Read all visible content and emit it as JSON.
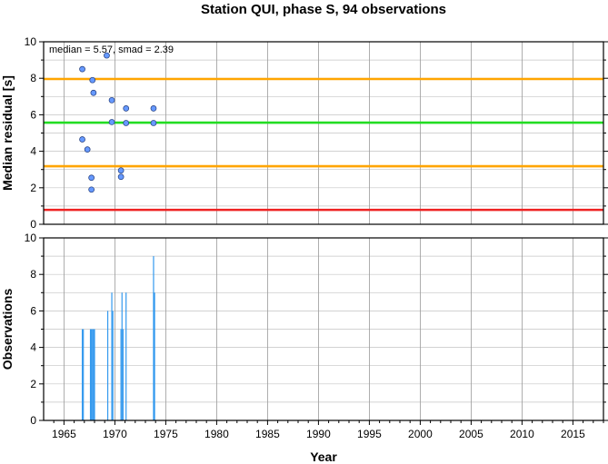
{
  "title": "Station QUI, phase S, 94 observations",
  "chart_data": [
    {
      "type": "scatter",
      "ylabel": "Median residual [s]",
      "annotation": "median = 5.57, smad = 2.39",
      "xlim": [
        1963,
        2018
      ],
      "ylim": [
        0,
        10
      ],
      "yticks": [
        "0",
        "2",
        "4",
        "6",
        "8",
        "10"
      ],
      "grid": true,
      "hlines": [
        {
          "y": 5.57,
          "color": "#22dd22"
        },
        {
          "y": 7.96,
          "color": "#ffa500"
        },
        {
          "y": 3.18,
          "color": "#ffa500"
        },
        {
          "y": 0.79,
          "color": "#ee2222"
        }
      ],
      "marker_color": "#6699ff",
      "points": [
        {
          "x": 1966.8,
          "y": 8.5
        },
        {
          "x": 1967.8,
          "y": 7.9
        },
        {
          "x": 1967.9,
          "y": 7.2
        },
        {
          "x": 1969.2,
          "y": 9.25
        },
        {
          "x": 1969.7,
          "y": 6.8
        },
        {
          "x": 1969.7,
          "y": 5.6
        },
        {
          "x": 1971.1,
          "y": 6.35
        },
        {
          "x": 1971.1,
          "y": 5.55
        },
        {
          "x": 1973.8,
          "y": 6.35
        },
        {
          "x": 1973.8,
          "y": 5.55
        },
        {
          "x": 1966.8,
          "y": 4.65
        },
        {
          "x": 1967.3,
          "y": 4.1
        },
        {
          "x": 1970.6,
          "y": 2.95
        },
        {
          "x": 1970.6,
          "y": 2.6
        },
        {
          "x": 1967.7,
          "y": 2.55
        },
        {
          "x": 1967.7,
          "y": 1.9
        }
      ]
    },
    {
      "type": "bar",
      "ylabel": "Observations",
      "xlabel": "Year",
      "xlim": [
        1963,
        2018
      ],
      "ylim": [
        0,
        10
      ],
      "yticks": [
        "0",
        "2",
        "4",
        "6",
        "8",
        "10"
      ],
      "xticks": [
        "1965",
        "1970",
        "1975",
        "1980",
        "1985",
        "1990",
        "1995",
        "2000",
        "2005",
        "2010",
        "2015"
      ],
      "grid": true,
      "bar_color": "#3399ee",
      "bars": [
        {
          "x": 1966.8,
          "y": 5
        },
        {
          "x": 1966.9,
          "y": 5
        },
        {
          "x": 1967.6,
          "y": 5
        },
        {
          "x": 1967.7,
          "y": 5
        },
        {
          "x": 1967.8,
          "y": 5
        },
        {
          "x": 1967.9,
          "y": 5
        },
        {
          "x": 1968.0,
          "y": 5
        },
        {
          "x": 1969.3,
          "y": 6
        },
        {
          "x": 1969.7,
          "y": 7
        },
        {
          "x": 1969.8,
          "y": 6
        },
        {
          "x": 1970.6,
          "y": 5
        },
        {
          "x": 1970.7,
          "y": 7
        },
        {
          "x": 1970.8,
          "y": 5
        },
        {
          "x": 1971.1,
          "y": 7
        },
        {
          "x": 1973.8,
          "y": 9
        },
        {
          "x": 1973.9,
          "y": 7
        }
      ]
    }
  ]
}
